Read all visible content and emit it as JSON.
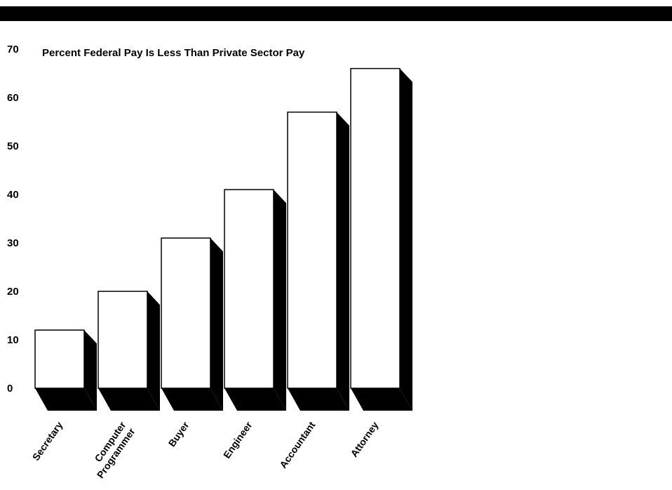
{
  "chart_data": {
    "type": "bar",
    "title": "Percent Federal Pay Is Less Than Private Sector Pay",
    "xlabel": "",
    "ylabel": "",
    "categories": [
      [
        "Secretary"
      ],
      [
        "Computer",
        "Programmer"
      ],
      [
        "Buyer"
      ],
      [
        "Engineer"
      ],
      [
        "Accountant"
      ],
      [
        "Attorney"
      ]
    ],
    "values": [
      12,
      20,
      31,
      41,
      57,
      66
    ],
    "ylim": [
      0,
      70
    ],
    "yticks": [
      0,
      10,
      20,
      30,
      40,
      50,
      60,
      70
    ],
    "grid": false,
    "bar_style": "3d-shadow",
    "colors": {
      "bar_face": "#ffffff",
      "bar_shadow": "#000000",
      "banner": "#000000"
    }
  }
}
